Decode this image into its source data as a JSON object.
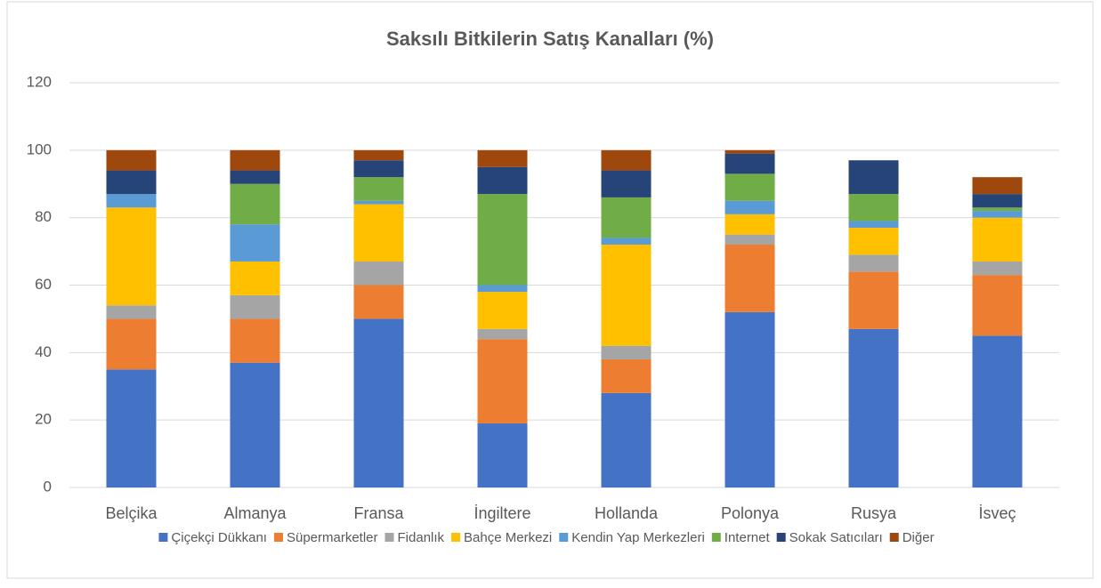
{
  "chart_data": {
    "type": "stacked_bar",
    "title": "Saksılı Bitkilerin Satış Kanalları (%)",
    "categories": [
      "Belçika",
      "Almanya",
      "Fransa",
      "İngiltere",
      "Hollanda",
      "Polonya",
      "Rusya",
      "İsveç"
    ],
    "series": [
      {
        "name": "Çiçekçi Dükkanı",
        "color": "#4472c4",
        "values": [
          35,
          37,
          50,
          19,
          28,
          52,
          47,
          45
        ]
      },
      {
        "name": "Süpermarketler",
        "color": "#ed7d31",
        "values": [
          15,
          13,
          10,
          25,
          10,
          20,
          17,
          18
        ]
      },
      {
        "name": "Fidanlık",
        "color": "#a5a5a5",
        "values": [
          4,
          7,
          7,
          3,
          4,
          3,
          5,
          4
        ]
      },
      {
        "name": "Bahçe Merkezi",
        "color": "#ffc000",
        "values": [
          29,
          10,
          17,
          11,
          30,
          6,
          8,
          13
        ]
      },
      {
        "name": "Kendin Yap Merkezleri",
        "color": "#5b9bd5",
        "values": [
          4,
          11,
          1,
          2,
          2,
          4,
          2,
          2
        ]
      },
      {
        "name": "Internet",
        "color": "#70ad47",
        "values": [
          0,
          12,
          7,
          27,
          12,
          8,
          8,
          1
        ]
      },
      {
        "name": "Sokak Satıcıları",
        "color": "#264478",
        "values": [
          7,
          4,
          5,
          8,
          8,
          6,
          10,
          4
        ]
      },
      {
        "name": "Diğer",
        "color": "#9e480e",
        "values": [
          6,
          6,
          3,
          5,
          6,
          1,
          0,
          5
        ]
      }
    ],
    "ylim": [
      0,
      120
    ],
    "yticks": [
      0,
      20,
      40,
      60,
      80,
      100,
      120
    ],
    "grid": true,
    "legend": "bottom"
  }
}
